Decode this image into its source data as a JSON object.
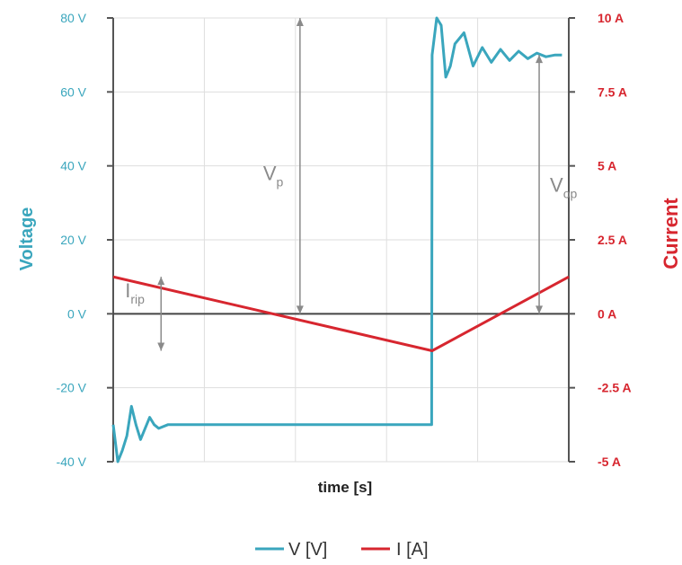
{
  "chart_data": {
    "type": "line",
    "title": "",
    "xlabel": "time [s]",
    "ylabel_left": "Voltage",
    "ylabel_right": "Current",
    "ylim_left": [
      -40,
      80
    ],
    "ylim_right": [
      -5,
      10
    ],
    "yticks_left": [
      "80 V",
      "60 V",
      "40 V",
      "20 V",
      "0 V",
      "-20 V",
      "-40 V"
    ],
    "yticks_right": [
      "10 A",
      "7.5 A",
      "5 A",
      "2.5 A",
      "0 A",
      "-2.5 A",
      "-5 A"
    ],
    "xlim": [
      0,
      1
    ],
    "grid": true,
    "legend_position": "bottom-center",
    "colors": {
      "voltage": "#3aa6bd",
      "current": "#d7262f",
      "annotation": "#8a8a8a"
    },
    "series": [
      {
        "name": "V [V]",
        "axis": "left",
        "x": [
          0.0,
          0.01,
          0.02,
          0.03,
          0.04,
          0.05,
          0.06,
          0.07,
          0.08,
          0.09,
          0.1,
          0.12,
          0.14,
          0.2,
          0.3,
          0.4,
          0.5,
          0.6,
          0.699,
          0.7,
          0.71,
          0.72,
          0.73,
          0.74,
          0.75,
          0.77,
          0.79,
          0.81,
          0.83,
          0.85,
          0.87,
          0.89,
          0.91,
          0.93,
          0.95,
          0.97,
          0.985
        ],
        "y": [
          -30,
          -40,
          -37,
          -33,
          -25,
          -30,
          -34,
          -31,
          -28,
          -30,
          -31,
          -30,
          -30,
          -30,
          -30,
          -30,
          -30,
          -30,
          -30,
          70,
          80,
          78,
          64,
          67,
          73,
          76,
          67,
          72,
          68,
          71.5,
          68.5,
          71,
          69,
          70.5,
          69.5,
          70,
          70
        ]
      },
      {
        "name": "I [A]",
        "axis": "right",
        "x": [
          0.0,
          0.7,
          1.0
        ],
        "y": [
          1.25,
          -1.25,
          1.25
        ]
      }
    ],
    "annotations": [
      {
        "label": "V",
        "sub": "p"
      },
      {
        "label": "V",
        "sub": "op"
      },
      {
        "label": "I",
        "sub": "rip"
      }
    ]
  },
  "legend": {
    "items": [
      {
        "label": "V [V]",
        "color": "#3aa6bd"
      },
      {
        "label": "I [A]",
        "color": "#d7262f"
      }
    ]
  }
}
